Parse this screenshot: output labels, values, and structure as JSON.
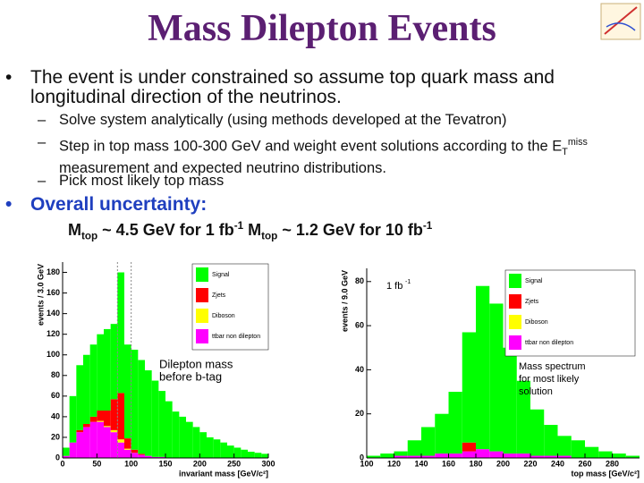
{
  "title": "Mass Dilepton Events",
  "bullets": [
    {
      "text": "The event is under constrained so assume top quark  mass and longitudinal direction of the neutrinos.",
      "subs": [
        [
          "Solve system analytically (using methods developed at the Tevatron)"
        ],
        [
          "Step in top mass 100-300 GeV and weight event solutions according to the E",
          "T",
          "miss",
          " measurement and expected neutrino distributions."
        ],
        [
          "Pick most likely top mass"
        ]
      ]
    },
    {
      "text": "Overall uncertainty:",
      "detail": [
        "M",
        "top",
        " ~ 4.5 GeV for 1 fb",
        "-1",
        " M",
        "top",
        " ~ 1.2 GeV for 10 fb",
        "-1"
      ]
    }
  ],
  "chart_data": [
    {
      "type": "histogram",
      "ylabel": "events / 3.0 GeV",
      "xlabel": "invariant mass [GeV/c²]",
      "annotation": [
        "Dilepton mass",
        "before b-tag"
      ],
      "reference_lines": [
        80,
        100
      ],
      "bins": [
        0,
        10,
        20,
        30,
        40,
        50,
        60,
        70,
        80,
        90,
        100,
        110,
        120,
        130,
        140,
        150,
        160,
        170,
        180,
        190,
        200,
        210,
        220,
        230,
        240,
        250,
        260,
        270,
        280,
        290,
        300
      ],
      "series": [
        {
          "name": "ttbar non dilepton",
          "color": "#ff00ff",
          "values": [
            2,
            15,
            25,
            30,
            35,
            35,
            30,
            25,
            15,
            8,
            5,
            3,
            2,
            1,
            1,
            0,
            0,
            0,
            0,
            0,
            0,
            0,
            0,
            0,
            0,
            0,
            0,
            0,
            0,
            0
          ]
        },
        {
          "name": "Diboson",
          "color": "#ffff00",
          "values": [
            0,
            0,
            0,
            0,
            0,
            1,
            1,
            2,
            3,
            1,
            0,
            0,
            0,
            0,
            0,
            0,
            0,
            0,
            0,
            0,
            0,
            0,
            0,
            0,
            0,
            0,
            0,
            0,
            0,
            0
          ]
        },
        {
          "name": "Zjets",
          "color": "#ff0000",
          "values": [
            0,
            0,
            2,
            3,
            5,
            10,
            15,
            30,
            45,
            10,
            3,
            1,
            0,
            0,
            0,
            0,
            0,
            0,
            0,
            0,
            0,
            0,
            0,
            0,
            0,
            0,
            0,
            0,
            0,
            0
          ]
        },
        {
          "name": "Signal",
          "color": "#00ff00",
          "values": [
            8,
            45,
            63,
            67,
            70,
            74,
            79,
            73,
            117,
            91,
            97,
            91,
            83,
            74,
            64,
            55,
            45,
            40,
            35,
            30,
            25,
            20,
            18,
            15,
            12,
            10,
            8,
            6,
            5,
            4
          ]
        }
      ],
      "xlim": [
        0,
        300
      ],
      "xticks": [
        0,
        50,
        100,
        150,
        200,
        250,
        300
      ],
      "ylim": [
        0,
        190
      ],
      "yticks": [
        0,
        20,
        40,
        60,
        80,
        100,
        120,
        140,
        160,
        180
      ]
    },
    {
      "type": "histogram",
      "ylabel": "events / 9.0 GeV",
      "xlabel": "top mass [GeV/c²]",
      "lumi": [
        "1 fb",
        "-1"
      ],
      "annotation": [
        "Mass spectrum",
        "for most likely",
        "solution"
      ],
      "bins": [
        100,
        110,
        120,
        130,
        140,
        150,
        160,
        170,
        180,
        190,
        200,
        210,
        220,
        230,
        240,
        250,
        260,
        270,
        280,
        290,
        300
      ],
      "series": [
        {
          "name": "ttbar non dilepton",
          "color": "#ff00ff",
          "values": [
            0,
            0,
            1,
            1,
            1,
            2,
            2,
            3,
            4,
            3,
            2,
            2,
            1,
            1,
            1,
            0,
            0,
            0,
            0,
            0
          ]
        },
        {
          "name": "Zjets",
          "color": "#ff0000",
          "values": [
            0,
            0,
            0,
            0,
            0,
            0,
            0,
            4,
            0,
            0,
            0,
            0,
            0,
            0,
            0,
            0,
            0,
            0,
            0,
            0
          ]
        },
        {
          "name": "Signal",
          "color": "#00ff00",
          "values": [
            1,
            2,
            2,
            7,
            13,
            18,
            28,
            50,
            74,
            67,
            48,
            33,
            21,
            14,
            9,
            8,
            5,
            3,
            2,
            1
          ]
        }
      ],
      "legend": [
        "Signal",
        "Zjets",
        "Diboson",
        "ttbar non dilepton"
      ],
      "legend_colors": [
        "#00ff00",
        "#ff0000",
        "#ffff00",
        "#ff00ff"
      ],
      "xlim": [
        100,
        300
      ],
      "xticks": [
        100,
        120,
        140,
        160,
        180,
        200,
        220,
        240,
        260,
        280
      ],
      "ylim": [
        0,
        86
      ],
      "yticks": [
        0,
        20,
        40,
        60,
        80
      ]
    }
  ]
}
